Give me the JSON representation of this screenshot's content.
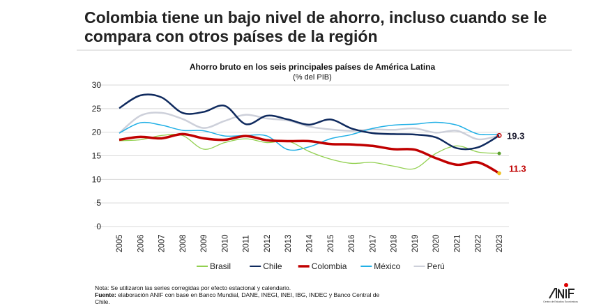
{
  "headline": "Colombia tiene un bajo nivel de ahorro, incluso cuando se le compara con otros países de la región",
  "footer": {
    "nota": "Nota: Se utilizaron las series corregidas por efecto estacional y calendario.",
    "fuente_label": "Fuente:",
    "fuente_text": " elaboración ANIF con base en Banco Mundial, DANE, INEGI, INEI, IBG, INDEC y Banco Central de Chile.",
    "logo_text": "ANIF",
    "logo_sub": "Centro de Estudios Económicos"
  },
  "chart_data": {
    "type": "line",
    "title": "Ahorro bruto en los seis principales países de América Latina",
    "subtitle": "(% del PIB)",
    "x": [
      "2005",
      "2006",
      "2007",
      "2008",
      "2009",
      "2010",
      "2011",
      "2012",
      "2013",
      "2014",
      "2015",
      "2016",
      "2017",
      "2018",
      "2019",
      "2020",
      "2021",
      "2022",
      "2023"
    ],
    "ylim": [
      0,
      30
    ],
    "yticks": [
      0,
      5,
      10,
      15,
      20,
      25,
      30
    ],
    "grid": true,
    "legend": "bottom",
    "series": [
      {
        "name": "Brasil",
        "color": "#92d050",
        "values": [
          18.2,
          18.4,
          19.3,
          19.3,
          16.4,
          17.8,
          18.6,
          17.8,
          18.1,
          15.9,
          14.3,
          13.4,
          13.6,
          12.8,
          12.3,
          15.5,
          17.1,
          15.8,
          15.5
        ]
      },
      {
        "name": "Chile",
        "color": "#0f2a5e",
        "values": [
          25.1,
          27.8,
          27.4,
          24.1,
          24.3,
          25.6,
          21.7,
          23.5,
          22.7,
          21.6,
          22.7,
          20.8,
          19.8,
          19.6,
          19.5,
          18.9,
          16.6,
          16.8,
          19.3
        ]
      },
      {
        "name": "Colombia",
        "color": "#c00000",
        "values": [
          18.4,
          19.0,
          18.7,
          19.6,
          18.7,
          18.4,
          19.2,
          18.3,
          18.1,
          18.1,
          17.5,
          17.4,
          17.1,
          16.4,
          16.3,
          14.5,
          13.1,
          13.6,
          11.3
        ]
      },
      {
        "name": "México",
        "color": "#22b0e6",
        "values": [
          19.8,
          22.0,
          21.5,
          20.4,
          20.3,
          19.2,
          19.3,
          19.2,
          16.3,
          16.9,
          18.6,
          19.5,
          20.8,
          21.5,
          21.7,
          22.1,
          21.5,
          19.6,
          19.6
        ]
      },
      {
        "name": "Perú",
        "color": "#cdd0da",
        "values": [
          19.8,
          23.5,
          24.1,
          22.8,
          20.9,
          22.4,
          23.7,
          22.9,
          22.5,
          21.2,
          20.6,
          20.3,
          20.6,
          20.5,
          20.8,
          19.9,
          20.3,
          18.5,
          19.3
        ]
      }
    ],
    "annotations": [
      {
        "label": "19.3",
        "series": "Chile",
        "color": "#1a1a2e"
      },
      {
        "label": "11.3",
        "series": "Colombia",
        "color": "#c00000"
      }
    ]
  }
}
